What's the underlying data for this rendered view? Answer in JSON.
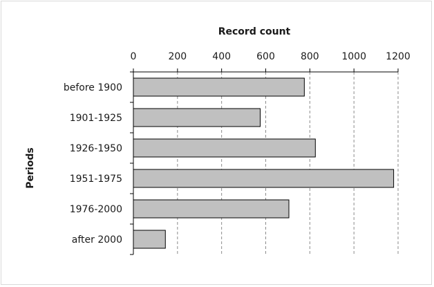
{
  "chart_data": {
    "type": "bar",
    "orientation": "horizontal",
    "title": "",
    "xlabel": "Record count",
    "ylabel": "Periods",
    "categories": [
      "before 1900",
      "1901-1925",
      "1926-1950",
      "1951-1975",
      "1976-2000",
      "after 2000"
    ],
    "values": [
      775,
      575,
      825,
      1180,
      705,
      145
    ],
    "xlim": [
      0,
      1200
    ],
    "xticks": [
      "0",
      "200",
      "400",
      "600",
      "800",
      "1000",
      "1200"
    ],
    "x_axis_position": "top",
    "grid": "vertical dashed",
    "legend": "none",
    "bar_color": "#c0c0c0",
    "bar_edge_color": "#000000"
  }
}
